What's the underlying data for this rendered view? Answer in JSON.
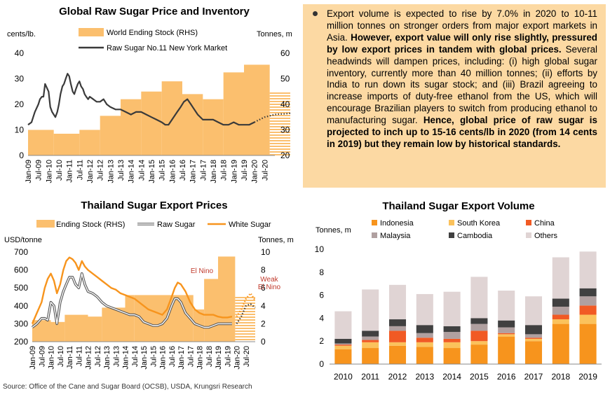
{
  "colors": {
    "stock": "#fbbf6e",
    "stock_forecast_hatch": "#fbbf6e",
    "raw_sugar_line": "#3a3a3a",
    "white_sugar_line": "#f7941d",
    "annotation_red": "#c0392b",
    "textbox_bg": "#fcd9a3",
    "indonesia": "#f7941d",
    "south_korea": "#fbc25c",
    "china": "#f15a24",
    "malaysia": "#b0a0a0",
    "cambodia": "#404040",
    "others": "#e0d4d4"
  },
  "text_panel": {
    "bullet_icon": "bullet-icon",
    "part1": "Export volume is expected to rise by 7.0% in 2020 to 10-11 million tonnes on stronger orders from major export markets in Asia.",
    "part2_bold": "However, export value will only rise slightly, pressured by low export prices in tandem with global prices.",
    "part3": "Several headwinds will dampen prices, including: (i) high global sugar inventory, currently more than 40 million tonnes; (ii) efforts by India to run down its sugar stock; and (iii) Brazil agreeing to increase imports of duty-free ethanol from the US, which will encourage Brazilian players to switch from producing ethanol to manufacturing sugar.",
    "part4_bold": "Hence, global price of raw sugar is projected to inch up to 15-16 cents/lb in 2020 (from 14 cents in 2019) but they remain low by historical standards."
  },
  "source": "Source: Office of the Cane and Sugar Board (OCSB), USDA, Krungsri Research",
  "chart_data": [
    {
      "type": "line",
      "title": "Global Raw Sugar Price and Inventory",
      "ylabel": "cents/lb.",
      "ylabel_right": "Tonnes, m",
      "ylim": [
        0,
        40
      ],
      "ylim_right": [
        20,
        60
      ],
      "yticks": [
        0,
        10,
        20,
        30,
        40
      ],
      "yticks_right": [
        20,
        30,
        40,
        50,
        60
      ],
      "xticks": [
        "Jan-09",
        "Jul-09",
        "Jan-10",
        "Jul-10",
        "Jan-11",
        "Jul-11",
        "Jan-12",
        "Jul-12",
        "Jan-13",
        "Jul-13",
        "Jan-14",
        "Jul-14",
        "Jan-15",
        "Jul-15",
        "Jan-16",
        "Jul-16",
        "Jan-17",
        "Jul-17",
        "Jan-18",
        "Jul-18",
        "Jan-19",
        "Jul-19",
        "Jan-20",
        "Jul-20"
      ],
      "legend": [
        "World Ending Stock (RHS)",
        "Raw Sugar No.11 New York Market"
      ],
      "series": [
        {
          "name": "World Ending Stock (RHS)",
          "kind": "step_bar",
          "axis": "right",
          "segments": [
            [
              2009.0,
              2010.25,
              30
            ],
            [
              2010.25,
              2011.5,
              28.5
            ],
            [
              2011.5,
              2012.5,
              30
            ],
            [
              2012.5,
              2013.5,
              35.5
            ],
            [
              2013.5,
              2014.5,
              42
            ],
            [
              2014.5,
              2015.5,
              45
            ],
            [
              2015.5,
              2016.5,
              49
            ],
            [
              2016.5,
              2017.5,
              44
            ],
            [
              2017.5,
              2018.5,
              42
            ],
            [
              2018.5,
              2019.5,
              52.5
            ],
            [
              2019.5,
              2020.75,
              55.5
            ]
          ],
          "forecast_segment": [
            2020.75,
            2021.75,
            45
          ]
        },
        {
          "name": "Raw Sugar No.11 New York Market",
          "kind": "line",
          "axis": "left",
          "x": [
            2009.0,
            2009.17,
            2009.33,
            2009.5,
            2009.58,
            2009.67,
            2009.75,
            2009.83,
            2010.0,
            2010.08,
            2010.17,
            2010.25,
            2010.33,
            2010.42,
            2010.5,
            2010.58,
            2010.67,
            2010.75,
            2010.83,
            2010.92,
            2011.0,
            2011.08,
            2011.17,
            2011.25,
            2011.33,
            2011.42,
            2011.5,
            2011.58,
            2011.67,
            2011.75,
            2011.83,
            2011.92,
            2012.0,
            2012.17,
            2012.33,
            2012.5,
            2012.67,
            2012.83,
            2013.0,
            2013.25,
            2013.5,
            2013.75,
            2014.0,
            2014.25,
            2014.5,
            2014.75,
            2015.0,
            2015.25,
            2015.5,
            2015.67,
            2015.83,
            2016.0,
            2016.25,
            2016.42,
            2016.58,
            2016.75,
            2016.92,
            2017.0,
            2017.25,
            2017.5,
            2017.75,
            2018.0,
            2018.25,
            2018.5,
            2018.75,
            2019.0,
            2019.25,
            2019.5,
            2019.75,
            2020.0
          ],
          "values": [
            12,
            13,
            17,
            20,
            22,
            23,
            23,
            28,
            25,
            19,
            17,
            16,
            15,
            17,
            20,
            24,
            27,
            28,
            30,
            32,
            31,
            28,
            25,
            24,
            26,
            28,
            29,
            27,
            26,
            24,
            23,
            22,
            23,
            22,
            21,
            21,
            22,
            20,
            19,
            18,
            18,
            17,
            16,
            17,
            17,
            16,
            15,
            14,
            13,
            12,
            12,
            14,
            17,
            19,
            21,
            22,
            20,
            19,
            16,
            14,
            14,
            14,
            13,
            12,
            12,
            13,
            12,
            12,
            12,
            13
          ]
        },
        {
          "name": "Raw Sugar No.11 forecast",
          "kind": "dotted_line",
          "axis": "left",
          "x": [
            2020.0,
            2020.25,
            2020.5,
            2020.75,
            2021.0,
            2021.25,
            2021.5,
            2021.75
          ],
          "values": [
            13,
            14,
            15,
            15.5,
            16,
            16.2,
            16.3,
            16.5
          ]
        }
      ]
    },
    {
      "type": "line",
      "title": "Thailand Sugar Export Prices",
      "ylabel": "USD/tonne",
      "ylabel_right": "Tonnes, m",
      "ylim": [
        200,
        700
      ],
      "ylim_right": [
        0,
        10
      ],
      "yticks": [
        200,
        300,
        400,
        500,
        600,
        700
      ],
      "yticks_right": [
        0,
        2,
        4,
        6,
        8,
        10
      ],
      "xticks": [
        "Jan-09",
        "Jul-09",
        "Jan-10",
        "Jul-10",
        "Jan-11",
        "Jul-11",
        "Jan-12",
        "Jul-12",
        "Jan-13",
        "Jul-13",
        "Jan-14",
        "Jul-14",
        "Jan-15",
        "Jul-15",
        "Jan-16",
        "Jul-16",
        "Jan-17",
        "Jul-17",
        "Jan-18",
        "Jul-18",
        "Jan-19",
        "Jul-19",
        "Jan-20",
        "Jul-20"
      ],
      "legend": [
        "Ending Stock (RHS)",
        "Raw Sugar",
        "White Sugar"
      ],
      "annotations": [
        "El Nino",
        "Weak El Nino"
      ],
      "series": [
        {
          "name": "Ending Stock (RHS)",
          "kind": "step_bar",
          "axis": "right",
          "segments": [
            [
              2009.0,
              2010.0,
              2.4
            ],
            [
              2010.0,
              2010.75,
              2.2
            ],
            [
              2010.75,
              2012.0,
              3.0
            ],
            [
              2012.0,
              2012.75,
              2.8
            ],
            [
              2012.75,
              2014.0,
              3.8
            ],
            [
              2014.0,
              2014.5,
              5.2
            ],
            [
              2014.5,
              2017.67,
              5.2
            ],
            [
              2017.67,
              2018.25,
              3.6
            ],
            [
              2018.25,
              2019.0,
              7.0
            ],
            [
              2019.0,
              2019.92,
              9.5
            ]
          ],
          "forecast_segment": [
            2019.92,
            2021.0,
            5.0
          ]
        },
        {
          "name": "White Sugar",
          "kind": "line",
          "axis": "left",
          "x": [
            2009.0,
            2009.25,
            2009.5,
            2009.67,
            2009.83,
            2010.0,
            2010.17,
            2010.33,
            2010.5,
            2010.67,
            2010.83,
            2011.0,
            2011.17,
            2011.33,
            2011.5,
            2011.67,
            2011.83,
            2012.0,
            2012.25,
            2012.5,
            2012.75,
            2013.0,
            2013.25,
            2013.5,
            2013.75,
            2014.0,
            2014.25,
            2014.5,
            2014.75,
            2015.0,
            2015.25,
            2015.5,
            2015.75,
            2016.0,
            2016.25,
            2016.5,
            2016.67,
            2016.83,
            2017.0,
            2017.25,
            2017.5,
            2017.75,
            2018.0,
            2018.25,
            2018.5,
            2018.75,
            2019.0,
            2019.25,
            2019.5,
            2019.75
          ],
          "values": [
            300,
            360,
            420,
            500,
            550,
            580,
            540,
            470,
            520,
            600,
            650,
            670,
            660,
            640,
            600,
            650,
            620,
            600,
            580,
            560,
            540,
            520,
            500,
            490,
            470,
            460,
            450,
            440,
            420,
            400,
            380,
            370,
            360,
            350,
            380,
            450,
            500,
            530,
            520,
            480,
            420,
            380,
            360,
            350,
            350,
            350,
            340,
            335,
            335,
            340
          ]
        },
        {
          "name": "Raw Sugar",
          "kind": "line",
          "axis": "left",
          "x": [
            2009.0,
            2009.25,
            2009.5,
            2009.67,
            2009.83,
            2010.0,
            2010.17,
            2010.33,
            2010.5,
            2010.67,
            2010.83,
            2011.0,
            2011.17,
            2011.33,
            2011.5,
            2011.67,
            2011.83,
            2012.0,
            2012.25,
            2012.5,
            2012.75,
            2013.0,
            2013.25,
            2013.5,
            2013.75,
            2014.0,
            2014.25,
            2014.5,
            2014.75,
            2015.0,
            2015.25,
            2015.5,
            2015.75,
            2016.0,
            2016.25,
            2016.5,
            2016.67,
            2016.83,
            2017.0,
            2017.25,
            2017.5,
            2017.75,
            2018.0,
            2018.25,
            2018.5,
            2018.75,
            2019.0,
            2019.25,
            2019.5,
            2019.75
          ],
          "values": [
            280,
            300,
            330,
            330,
            320,
            420,
            400,
            300,
            420,
            480,
            520,
            560,
            560,
            520,
            500,
            580,
            520,
            480,
            470,
            450,
            420,
            400,
            390,
            380,
            370,
            360,
            350,
            350,
            340,
            310,
            300,
            290,
            290,
            300,
            330,
            400,
            440,
            440,
            420,
            360,
            330,
            300,
            290,
            280,
            280,
            290,
            300,
            300,
            300,
            300
          ]
        },
        {
          "name": "White Sugar forecast",
          "kind": "dotted_line",
          "axis": "left",
          "x": [
            2020.0,
            2020.25,
            2020.5,
            2020.75,
            2021.0
          ],
          "values": [
            340,
            380,
            440,
            470,
            430
          ]
        },
        {
          "name": "Raw Sugar forecast",
          "kind": "dotted_line",
          "axis": "left",
          "x": [
            2020.0,
            2020.25,
            2020.5,
            2020.75,
            2021.0
          ],
          "values": [
            300,
            340,
            400,
            410,
            390
          ]
        }
      ]
    },
    {
      "type": "bar",
      "stacked": true,
      "title": "Thailand Sugar Export Volume",
      "ylabel": "Tonnes, m",
      "ylim": [
        0,
        10
      ],
      "yticks": [
        0,
        2,
        4,
        6,
        8,
        10
      ],
      "categories": [
        "2010",
        "2011",
        "2012",
        "2013",
        "2014",
        "2015",
        "2016",
        "2017",
        "2018",
        "2019"
      ],
      "legend_position": "top",
      "series": [
        {
          "name": "Indonesia",
          "values": [
            1.3,
            1.4,
            1.6,
            1.5,
            1.4,
            1.7,
            2.4,
            2.0,
            3.5,
            3.5
          ]
        },
        {
          "name": "South Korea",
          "values": [
            0.3,
            0.5,
            0.3,
            0.4,
            0.5,
            0.3,
            0.2,
            0.2,
            0.4,
            0.8
          ]
        },
        {
          "name": "China",
          "values": [
            0.1,
            0.2,
            1.0,
            0.4,
            0.3,
            0.9,
            0.1,
            0.1,
            0.4,
            0.8
          ]
        },
        {
          "name": "Malaysia",
          "values": [
            0.1,
            0.3,
            0.4,
            0.4,
            0.6,
            0.6,
            0.5,
            0.3,
            0.7,
            0.8
          ]
        },
        {
          "name": "Cambodia",
          "values": [
            0.4,
            0.5,
            0.6,
            0.7,
            0.5,
            0.5,
            0.6,
            0.8,
            0.7,
            0.7
          ]
        },
        {
          "name": "Others",
          "values": [
            2.4,
            3.6,
            3.0,
            2.7,
            3.0,
            3.6,
            2.6,
            2.5,
            3.6,
            3.2
          ]
        }
      ]
    }
  ]
}
